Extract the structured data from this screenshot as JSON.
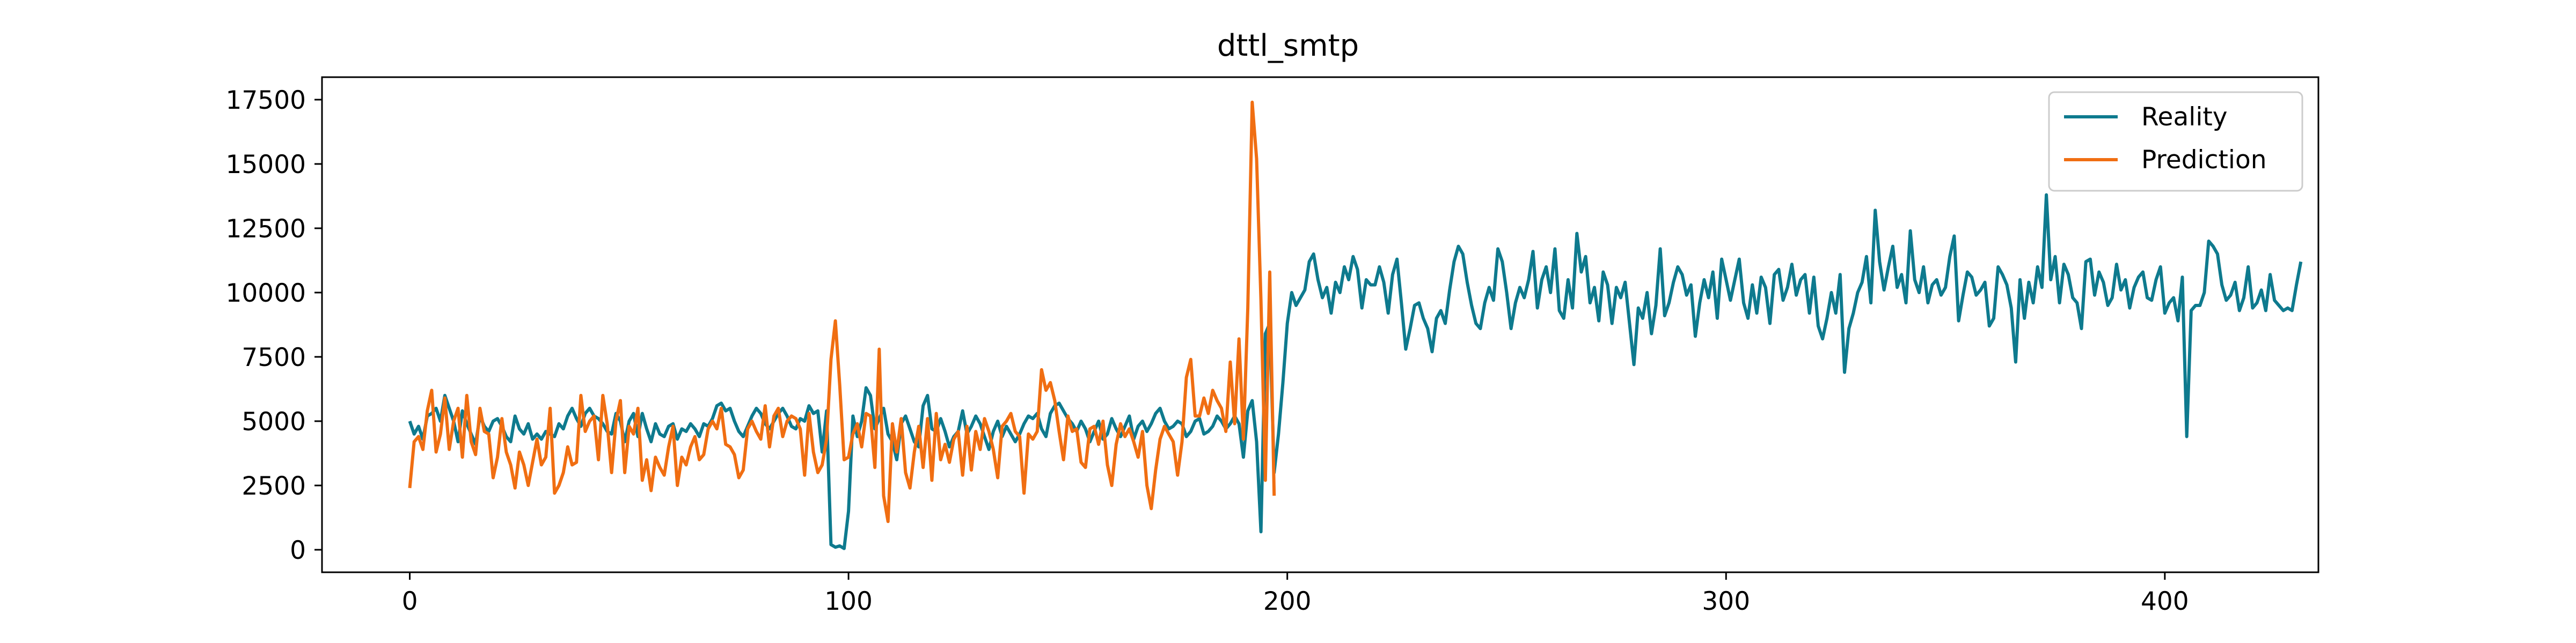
{
  "chart_data": {
    "type": "line",
    "title": "dttl_smtp",
    "xlabel": "",
    "ylabel": "",
    "xlim": [
      -20,
      435
    ],
    "ylim": [
      -875,
      18375
    ],
    "xticks": [
      0,
      100,
      200,
      300,
      400
    ],
    "yticks": [
      0,
      2500,
      5000,
      7500,
      10000,
      12500,
      15000,
      17500
    ],
    "grid": false,
    "legend_position": "top-right",
    "series": [
      {
        "name": "Reality",
        "color": "#0e7a8e",
        "x_start": 0,
        "values": [
          5000,
          4500,
          4800,
          4300,
          5200,
          5300,
          5500,
          5000,
          6000,
          5500,
          5000,
          4200,
          5400,
          4900,
          4500,
          4100,
          5200,
          4800,
          4600,
          5000,
          5100,
          4800,
          4400,
          4200,
          5200,
          4700,
          4500,
          4900,
          4300,
          4500,
          4300,
          4600,
          4500,
          4400,
          4900,
          4700,
          5200,
          5500,
          5100,
          4800,
          5300,
          5500,
          5200,
          5100,
          4900,
          4600,
          4500,
          5300,
          5000,
          4200,
          5000,
          5300,
          4400,
          5300,
          4700,
          4200,
          4900,
          4500,
          4400,
          4800,
          4900,
          4300,
          4700,
          4600,
          4900,
          4700,
          4400,
          4900,
          4800,
          5100,
          5600,
          5700,
          5400,
          5500,
          5000,
          4600,
          4400,
          4800,
          5200,
          5500,
          5300,
          4900,
          4700,
          5000,
          5300,
          5500,
          5200,
          4800,
          4700,
          5100,
          5000,
          5600,
          5300,
          5400,
          3800,
          5400,
          200,
          100,
          150,
          50,
          1500,
          5200,
          4400,
          5000,
          6300,
          6000,
          4700,
          5100,
          5500,
          4500,
          4200,
          3500,
          4900,
          5200,
          4700,
          4200,
          4000,
          5600,
          6000,
          4700,
          4600,
          5100,
          4600,
          4000,
          4400,
          4600,
          5400,
          4500,
          4800,
          5200,
          4900,
          4400,
          3900,
          4600,
          5000,
          4400,
          4800,
          4500,
          4200,
          4500,
          4900,
          5200,
          5100,
          5300,
          4700,
          4400,
          5300,
          5600,
          5700,
          5400,
          5100,
          4900,
          4600,
          5000,
          4700,
          4200,
          4600,
          5000,
          4300,
          4500,
          5100,
          4700,
          4400,
          4800,
          5200,
          4300,
          4800,
          5000,
          4600,
          4900,
          5300,
          5500,
          5000,
          4700,
          4800,
          5000,
          4900,
          4400,
          4600,
          5000,
          5100,
          4500,
          4600,
          4800,
          5200,
          5000,
          4700,
          4900,
          5200,
          4900,
          3600,
          5400,
          5800,
          4200,
          700,
          8400,
          8800,
          3000,
          4500,
          6500,
          8800,
          10000,
          9500,
          9800,
          10100,
          11200,
          11500,
          10500,
          9800,
          10200,
          9200,
          10400,
          10000,
          11000,
          10500,
          11400,
          10900,
          9400,
          10500,
          10300,
          10300,
          11000,
          10400,
          9200,
          10700,
          11300,
          9600,
          7800,
          8600,
          9500,
          9600,
          9000,
          8600,
          7700,
          9000,
          9300,
          8800,
          10100,
          11200,
          11800,
          11500,
          10400,
          9500,
          8800,
          8600,
          9600,
          10200,
          9700,
          11700,
          11200,
          10000,
          8600,
          9600,
          10200,
          9800,
          10500,
          11600,
          9400,
          10500,
          11000,
          10000,
          11700,
          9300,
          9000,
          10500,
          9400,
          12300,
          10800,
          11400,
          9600,
          10200,
          8900,
          10800,
          10300,
          8800,
          10200,
          9800,
          10400,
          8800,
          7200,
          9400,
          9000,
          10000,
          8400,
          9500,
          11700,
          9100,
          9600,
          10400,
          11000,
          10700,
          9900,
          10300,
          8300,
          9600,
          10500,
          9800,
          10800,
          9000,
          11300,
          10500,
          9700,
          10500,
          11300,
          9600,
          9000,
          10300,
          9200,
          10600,
          10200,
          8800,
          10700,
          10900,
          9700,
          10200,
          11100,
          9900,
          10500,
          10700,
          9200,
          10600,
          8700,
          8200,
          9000,
          10000,
          9200,
          10700,
          6900,
          8600,
          9200,
          10000,
          10400,
          11400,
          9600,
          13200,
          11200,
          10100,
          11000,
          11800,
          10200,
          10700,
          9600,
          12400,
          10500,
          10000,
          11000,
          9600,
          10300,
          10500,
          9900,
          10200,
          11400,
          12200,
          8900,
          9900,
          10800,
          10600,
          9900,
          10100,
          10400,
          8700,
          9000,
          11000,
          10700,
          10300,
          9400,
          7300,
          10500,
          9000,
          10400,
          9600,
          11000,
          10200,
          13800,
          10500,
          11400,
          9600,
          11100,
          10700,
          9800,
          9600,
          8600,
          11200,
          11300,
          9900,
          10800,
          10400,
          9500,
          9800,
          11100,
          10100,
          10500,
          9400,
          10200,
          10600,
          10800,
          9800,
          9700,
          10500,
          11000,
          9200,
          9600,
          9800,
          8900,
          10600,
          4400,
          9300,
          9500,
          9500,
          10000,
          12000,
          11800,
          11500,
          10300,
          9700,
          9900,
          10400,
          9300,
          9800,
          11000,
          9400,
          9600,
          10100,
          9300,
          10700,
          9700,
          9500,
          9300,
          9400,
          9300,
          10300,
          11200
        ]
      },
      {
        "name": "Prediction",
        "color": "#f06e12",
        "x_start": 0,
        "values": [
          2400,
          4200,
          4400,
          3900,
          5400,
          6200,
          3800,
          4500,
          5900,
          3900,
          5000,
          5500,
          3600,
          6000,
          4200,
          3700,
          5500,
          4600,
          4500,
          2800,
          3600,
          5100,
          3800,
          3300,
          2400,
          3800,
          3300,
          2500,
          3400,
          4300,
          3300,
          3600,
          5500,
          2200,
          2500,
          3000,
          4000,
          3300,
          3400,
          6000,
          4600,
          5000,
          5200,
          3500,
          6000,
          4900,
          3000,
          5000,
          5800,
          3000,
          4800,
          4500,
          5500,
          2700,
          3500,
          2300,
          3600,
          3200,
          2900,
          4000,
          4800,
          2500,
          3600,
          3300,
          4000,
          4400,
          3500,
          3700,
          4700,
          5000,
          4700,
          5500,
          4100,
          4000,
          3700,
          2800,
          3100,
          4700,
          5000,
          4600,
          4300,
          5600,
          4000,
          5200,
          5500,
          4400,
          5000,
          5200,
          5100,
          4700,
          2900,
          5300,
          3800,
          3000,
          3300,
          4300,
          7400,
          8900,
          6400,
          3500,
          3600,
          4500,
          4900,
          4000,
          5300,
          5200,
          3200,
          7800,
          2100,
          1100,
          4900,
          3800,
          5100,
          3000,
          2400,
          3800,
          4800,
          3200,
          5100,
          2700,
          5300,
          3500,
          4100,
          3400,
          4300,
          4600,
          2900,
          4800,
          3100,
          4600,
          3900,
          5100,
          4600,
          3900,
          2800,
          4800,
          5000,
          5300,
          4600,
          4400,
          2200,
          4500,
          4300,
          4600,
          7000,
          6200,
          6500,
          5800,
          4600,
          3500,
          5200,
          4600,
          4700,
          3400,
          3200,
          4700,
          4800,
          4100,
          5000,
          3300,
          2500,
          4100,
          4900,
          4400,
          4700,
          4200,
          3600,
          4600,
          2500,
          1600,
          3100,
          4300,
          4800,
          4500,
          4200,
          2900,
          4200,
          6700,
          7400,
          5200,
          5200,
          5900,
          5300,
          6200,
          5800,
          5500,
          4600,
          7300,
          4900,
          8200,
          4300,
          9400,
          17400,
          15200,
          9700,
          2700,
          10800,
          2100
        ]
      }
    ]
  }
}
